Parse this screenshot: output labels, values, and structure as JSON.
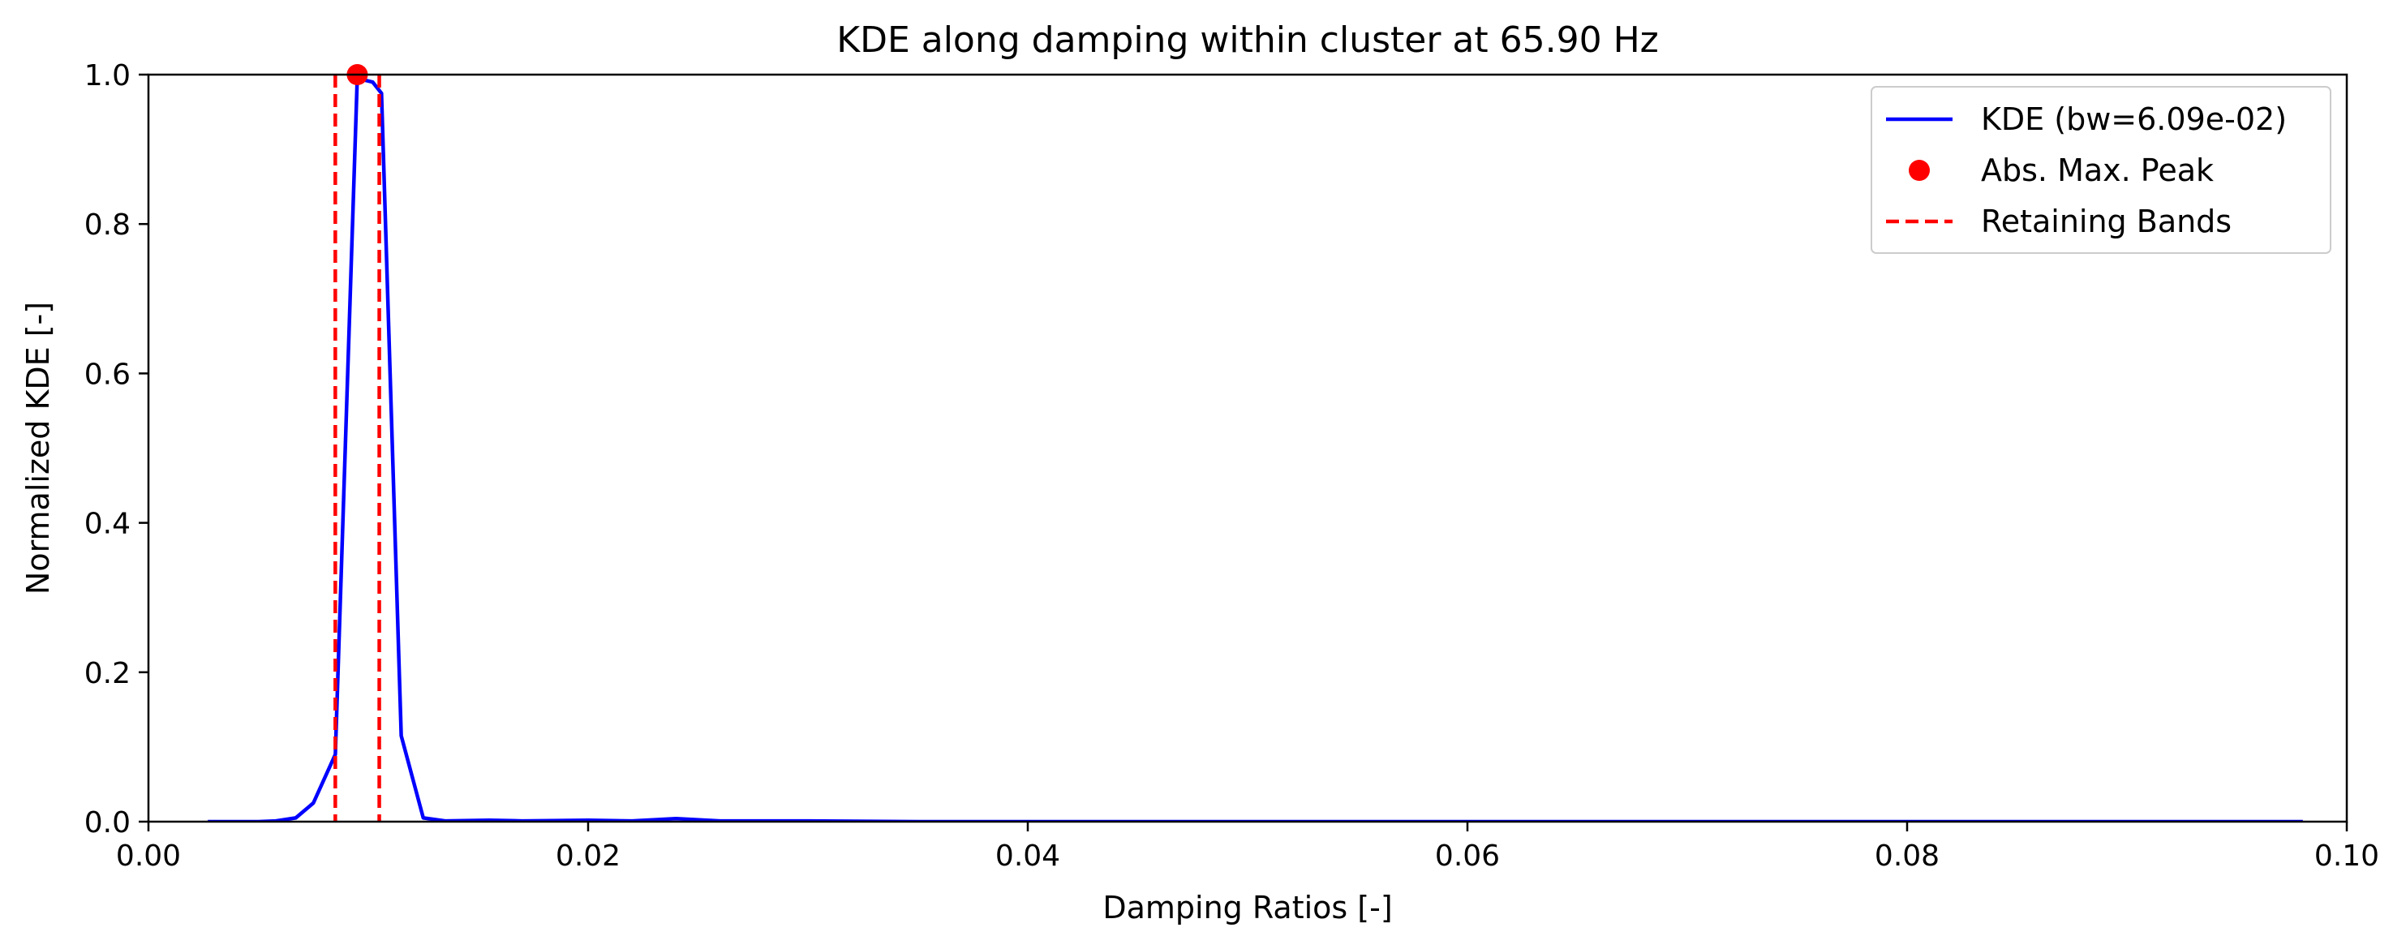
{
  "chart_data": {
    "type": "line",
    "title": "KDE along damping within cluster at 65.90 Hz",
    "xlabel": "Damping Ratios [-]",
    "ylabel": "Normalized KDE [-]",
    "xlim": [
      0.0,
      0.1
    ],
    "ylim": [
      0.0,
      1.0
    ],
    "xticks": [
      0.0,
      0.02,
      0.04,
      0.06,
      0.08,
      0.1
    ],
    "xtick_labels": [
      "0.00",
      "0.02",
      "0.04",
      "0.06",
      "0.08",
      "0.10"
    ],
    "yticks": [
      0.0,
      0.2,
      0.4,
      0.6,
      0.8,
      1.0
    ],
    "ytick_labels": [
      "0.0",
      "0.2",
      "0.4",
      "0.6",
      "0.8",
      "1.0"
    ],
    "grid": false,
    "legend": {
      "position": "top-right"
    },
    "series": [
      {
        "name": "KDE (bw=6.09e-02)",
        "kind": "line",
        "color": "#0000ff",
        "x": [
          0.0027,
          0.004,
          0.005,
          0.0058,
          0.0067,
          0.0075,
          0.0085,
          0.0095,
          0.0102,
          0.0106,
          0.0115,
          0.0125,
          0.0135,
          0.0155,
          0.017,
          0.02,
          0.022,
          0.024,
          0.026,
          0.03,
          0.035,
          0.04,
          0.06,
          0.08,
          0.098
        ],
        "y": [
          0.0,
          0.0,
          0.0,
          0.001,
          0.005,
          0.025,
          0.09,
          0.995,
          0.99,
          0.975,
          0.115,
          0.005,
          0.001,
          0.002,
          0.001,
          0.002,
          0.001,
          0.004,
          0.001,
          0.001,
          0.0,
          0.0,
          0.0,
          0.0,
          0.0
        ]
      },
      {
        "name": "Abs. Max. Peak",
        "kind": "scatter",
        "color": "#ff0000",
        "x": [
          0.0095
        ],
        "y": [
          1.0
        ]
      },
      {
        "name": "Retaining Bands",
        "kind": "vline",
        "color": "#ff0000",
        "x": [
          0.0085,
          0.0105
        ]
      }
    ]
  }
}
